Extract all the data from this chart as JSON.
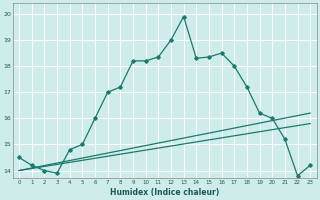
{
  "xlabel": "Humidex (Indice chaleur)",
  "background_color": "#ceecea",
  "grid_color": "#ffffff",
  "line_color": "#1a7a6e",
  "xlim": [
    -0.5,
    23.5
  ],
  "ylim": [
    13.7,
    20.4
  ],
  "yticks": [
    14,
    15,
    16,
    17,
    18,
    19,
    20
  ],
  "xticks": [
    0,
    1,
    2,
    3,
    4,
    5,
    6,
    7,
    8,
    9,
    10,
    11,
    12,
    13,
    14,
    15,
    16,
    17,
    18,
    19,
    20,
    21,
    22,
    23
  ],
  "series1_x": [
    0,
    1,
    2,
    3,
    4,
    5,
    6,
    7,
    8,
    9,
    10,
    11,
    12,
    13,
    14,
    15,
    16,
    17,
    18,
    19,
    20,
    21,
    22,
    23
  ],
  "series1_y": [
    14.5,
    14.2,
    14.0,
    13.9,
    14.8,
    15.0,
    16.0,
    17.0,
    17.2,
    18.2,
    18.2,
    18.35,
    19.0,
    19.9,
    18.3,
    18.35,
    18.5,
    18.0,
    17.2,
    16.2,
    16.0,
    15.2,
    13.8,
    14.2
  ],
  "series2_x": [
    0,
    23
  ],
  "series2_y": [
    14.0,
    16.2
  ],
  "series3_x": [
    0,
    23
  ],
  "series3_y": [
    14.0,
    15.8
  ]
}
